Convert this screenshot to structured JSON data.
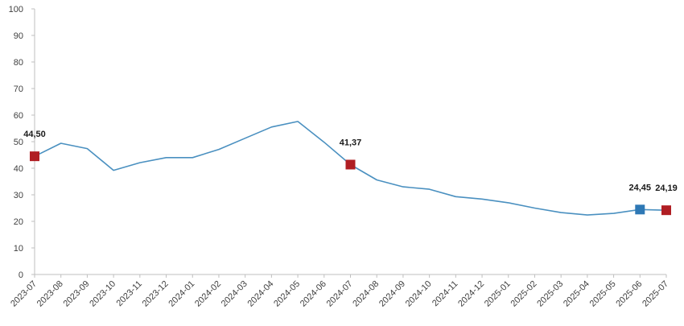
{
  "chart_data": {
    "type": "line",
    "title": "",
    "xlabel": "",
    "ylabel": "",
    "ylim": [
      0,
      100
    ],
    "yticks": [
      0,
      10,
      20,
      30,
      40,
      50,
      60,
      70,
      80,
      90,
      100
    ],
    "grid": false,
    "legend": "none",
    "categories": [
      "2023-07",
      "2023-08",
      "2023-09",
      "2023-10",
      "2023-11",
      "2023-12",
      "2024-01",
      "2024-02",
      "2024-03",
      "2024-04",
      "2024-05",
      "2024-06",
      "2024-07",
      "2024-08",
      "2024-09",
      "2024-10",
      "2024-11",
      "2024-12",
      "2025-01",
      "2025-02",
      "2025-03",
      "2025-04",
      "2025-05",
      "2025-06",
      "2025-07"
    ],
    "series": [
      {
        "values": [
          44.5,
          49.4,
          47.4,
          39.2,
          42.1,
          44.0,
          44.0,
          47.1,
          51.3,
          55.5,
          57.6,
          49.8,
          41.37,
          35.6,
          33.0,
          32.1,
          29.3,
          28.4,
          27.0,
          25.0,
          23.3,
          22.4,
          23.0,
          24.45,
          24.19
        ],
        "color": "#4a90c0"
      }
    ],
    "highlights": [
      {
        "category": "2023-07",
        "value": 44.5,
        "label": "44,50",
        "color": "#b01e23"
      },
      {
        "category": "2024-07",
        "value": 41.37,
        "label": "41,37",
        "color": "#b01e23"
      },
      {
        "category": "2025-06",
        "value": 24.45,
        "label": "24,45",
        "color": "#2e78b5"
      },
      {
        "category": "2025-07",
        "value": 24.19,
        "label": "24,19",
        "color": "#b01e23"
      }
    ],
    "axis_color": "#bfbfbf"
  }
}
